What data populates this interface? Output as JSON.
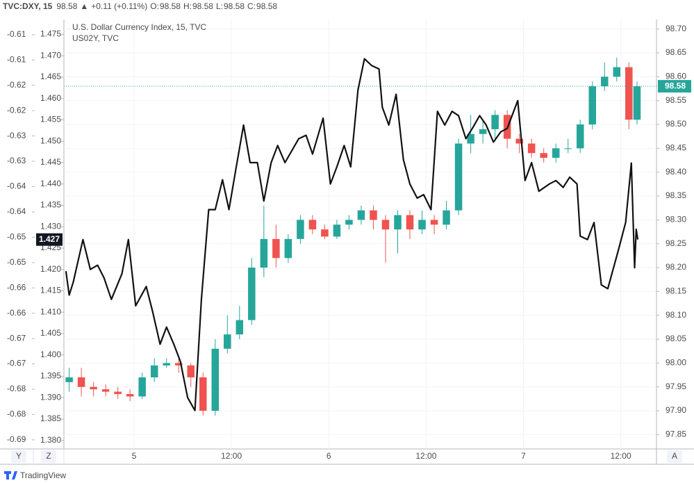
{
  "header": {
    "symbol": "TVC:DXY, 15",
    "last": "98.58",
    "arrow": "▲",
    "change": "+0.11 (+0.11%)",
    "ohlc": [
      {
        "key": "O:",
        "value": "98.58"
      },
      {
        "key": "H:",
        "value": "98.58"
      },
      {
        "key": "L:",
        "value": "98.58"
      },
      {
        "key": "C:",
        "value": "98.58"
      }
    ]
  },
  "ui": {
    "buttons": [
      "Y",
      "Z",
      "A"
    ],
    "brand": "TradingView"
  },
  "chart_data": {
    "type": "candlestick",
    "legend": [
      "U.S. Dollar Currency Index, 15, TVC",
      "US02Y, TVC"
    ],
    "up_color": "#26a69a",
    "down_color": "#ef5350",
    "grid": true,
    "xlim": [
      -8.65,
      64.4
    ],
    "xticks": [
      {
        "value": 0,
        "label": "5"
      },
      {
        "value": 12,
        "label": "12:00"
      },
      {
        "value": 24,
        "label": "6"
      },
      {
        "value": 36,
        "label": "12:00"
      },
      {
        "value": 48,
        "label": "7"
      },
      {
        "value": 60,
        "label": "12:00"
      }
    ],
    "ylim": [
      97.82,
      98.72
    ],
    "yticks": [
      97.85,
      {
        "value": 97.9,
        "label": "97.90"
      },
      97.95,
      {
        "value": 98,
        "label": "98.00"
      },
      98.05,
      {
        "value": 98.1,
        "label": "98.10"
      },
      98.15,
      {
        "value": 98.2,
        "label": "98.20"
      },
      98.25,
      {
        "value": 98.3,
        "label": "98.30"
      },
      98.35,
      {
        "value": 98.4,
        "label": "98.40"
      },
      98.45,
      {
        "value": 98.5,
        "label": "98.50"
      },
      98.55,
      {
        "value": 98.6,
        "label": "98.60"
      },
      98.65,
      {
        "value": 98.7,
        "label": "98.70"
      }
    ],
    "y2lim": [
      1.378,
      1.4785
    ],
    "y2ticks": [
      {
        "value": 1.38,
        "label": "1.380"
      },
      1.385,
      {
        "value": 1.39,
        "label": "1.390"
      },
      1.395,
      {
        "value": 1.4,
        "label": "1.400"
      },
      1.405,
      {
        "value": 1.41,
        "label": "1.410"
      },
      1.415,
      {
        "value": 1.42,
        "label": "1.420"
      },
      1.425,
      {
        "value": 1.43,
        "label": "1.430"
      },
      1.435,
      {
        "value": 1.44,
        "label": "1.440"
      },
      1.445,
      {
        "value": 1.45,
        "label": "1.450"
      },
      1.455,
      {
        "value": 1.46,
        "label": "1.460"
      },
      1.465,
      {
        "value": 1.47,
        "label": "1.470"
      },
      1.475
    ],
    "y3lim": [
      -0.6868,
      -0.602
    ],
    "y3ticks": [
      {
        "value": -0.685,
        "label": "-0.69"
      },
      {
        "value": -0.68,
        "label": "-0.68"
      },
      {
        "value": -0.675,
        "label": "-0.68"
      },
      {
        "value": -0.67,
        "label": "-0.67"
      },
      {
        "value": -0.665,
        "label": "-0.67"
      },
      {
        "value": -0.66,
        "label": "-0.66"
      },
      {
        "value": -0.655,
        "label": "-0.66"
      },
      {
        "value": -0.65,
        "label": "-0.65"
      },
      {
        "value": -0.645,
        "label": "-0.65"
      },
      {
        "value": -0.64,
        "label": "-0.64"
      },
      {
        "value": -0.635,
        "label": "-0.64"
      },
      {
        "value": -0.63,
        "label": "-0.63"
      },
      {
        "value": -0.625,
        "label": "-0.63"
      },
      {
        "value": -0.62,
        "label": "-0.62"
      },
      {
        "value": -0.615,
        "label": "-0.62"
      },
      {
        "value": -0.61,
        "label": "-0.61"
      },
      {
        "value": -0.605,
        "label": "-0.61"
      }
    ],
    "series": [
      {
        "name": "TVC:DXY",
        "type": "candlestick",
        "x": [
          -8,
          -6.5,
          -5,
          -3.5,
          -2,
          -0.5,
          1,
          2.5,
          4,
          5.5,
          7,
          8.5,
          10,
          11.5,
          13,
          14.5,
          16,
          17.5,
          19,
          20.5,
          22,
          23.5,
          25,
          26.5,
          28,
          29.5,
          31,
          32.5,
          34,
          35.5,
          37,
          38.5,
          40,
          41.5,
          43,
          44.5,
          46,
          47.5,
          49,
          50.5,
          52,
          53.5,
          55,
          56.5,
          58,
          59.5,
          61,
          62
        ],
        "open": [
          97.96,
          97.97,
          97.95,
          97.945,
          97.94,
          97.935,
          97.93,
          97.97,
          97.995,
          98.0,
          97.995,
          97.97,
          97.9,
          98.03,
          98.06,
          98.09,
          98.2,
          98.26,
          98.22,
          98.26,
          98.3,
          98.28,
          98.265,
          98.29,
          98.3,
          98.32,
          98.3,
          98.28,
          98.31,
          98.28,
          98.3,
          98.29,
          98.32,
          98.46,
          98.48,
          98.49,
          98.52,
          98.47,
          98.46,
          98.44,
          98.43,
          98.45,
          98.45,
          98.5,
          98.58,
          98.6,
          98.62,
          98.51
        ],
        "high": [
          97.99,
          97.99,
          97.96,
          97.955,
          97.95,
          97.945,
          97.98,
          98.01,
          98.01,
          98.01,
          98.0,
          97.98,
          98.05,
          98.1,
          98.12,
          98.22,
          98.33,
          98.29,
          98.27,
          98.31,
          98.31,
          98.29,
          98.3,
          98.31,
          98.33,
          98.33,
          98.31,
          98.32,
          98.32,
          98.32,
          98.31,
          98.34,
          98.47,
          98.52,
          98.51,
          98.53,
          98.53,
          98.48,
          98.47,
          98.45,
          98.46,
          98.47,
          98.51,
          98.59,
          98.63,
          98.64,
          98.63,
          98.59
        ],
        "low": [
          97.94,
          97.93,
          97.93,
          97.93,
          97.925,
          97.92,
          97.925,
          97.96,
          97.99,
          97.98,
          97.95,
          97.89,
          97.89,
          98.02,
          98.05,
          98.08,
          98.18,
          98.2,
          98.21,
          98.25,
          98.27,
          98.26,
          98.26,
          98.28,
          98.29,
          98.28,
          98.21,
          98.23,
          98.26,
          98.27,
          98.27,
          98.28,
          98.31,
          98.44,
          98.46,
          98.47,
          98.45,
          98.44,
          98.43,
          98.42,
          98.42,
          98.44,
          98.44,
          98.49,
          98.57,
          98.59,
          98.49,
          98.5
        ],
        "close": [
          97.97,
          97.95,
          97.945,
          97.94,
          97.935,
          97.93,
          97.97,
          97.995,
          98.0,
          97.995,
          97.97,
          97.9,
          98.03,
          98.06,
          98.09,
          98.2,
          98.26,
          98.22,
          98.26,
          98.3,
          98.28,
          98.265,
          98.29,
          98.3,
          98.32,
          98.3,
          98.28,
          98.31,
          98.28,
          98.3,
          98.29,
          98.32,
          98.46,
          98.48,
          98.49,
          98.52,
          98.47,
          98.46,
          98.44,
          98.43,
          98.45,
          98.45,
          98.5,
          98.58,
          98.6,
          98.62,
          98.51,
          98.58
        ]
      },
      {
        "name": "US02Y",
        "type": "line",
        "axis": "y2",
        "color": "#111111",
        "x": [
          -8.4,
          -8.0,
          -7.5,
          -6.3,
          -5.4,
          -4.5,
          -3.7,
          -2.8,
          -1.5,
          -0.7,
          0.2,
          1.5,
          2.3,
          3.2,
          4.0,
          4.9,
          5.7,
          6.6,
          7.5,
          8.3,
          9.2,
          10.0,
          10.9,
          11.7,
          12.6,
          13.5,
          14.3,
          15.2,
          16.0,
          16.9,
          17.7,
          18.6,
          20.3,
          21.2,
          22.0,
          23.3,
          24.2,
          25.0,
          25.9,
          26.7,
          27.6,
          28.4,
          29.3,
          30.2,
          30.6,
          31.4,
          32.3,
          33.2,
          34.0,
          34.9,
          35.7,
          36.6,
          37.4,
          38.3,
          39.2,
          40.0,
          40.9,
          41.7,
          42.6,
          43.4,
          44.3,
          45.2,
          46.0,
          47.3,
          48.2,
          49.0,
          49.9,
          51.2,
          52.0,
          52.9,
          53.7,
          54.6,
          55.0,
          55.9,
          56.7,
          57.6,
          58.4,
          59.7,
          60.6,
          61.3,
          61.7,
          61.9,
          62.1
        ],
        "values": [
          1.4196,
          1.414,
          1.417,
          1.427,
          1.42,
          1.421,
          1.418,
          1.413,
          1.419,
          1.427,
          1.4115,
          1.416,
          1.41,
          1.4025,
          1.4065,
          1.4025,
          1.3985,
          1.39,
          1.387,
          1.413,
          1.434,
          1.434,
          1.441,
          1.434,
          1.444,
          1.4538,
          1.445,
          1.445,
          1.436,
          1.445,
          1.449,
          1.445,
          1.4506,
          1.4514,
          1.447,
          1.4554,
          1.44,
          1.444,
          1.449,
          1.444,
          1.462,
          1.4693,
          1.4677,
          1.4669,
          1.458,
          1.4538,
          1.461,
          1.4457,
          1.44,
          1.4367,
          1.4375,
          1.434,
          1.457,
          1.4538,
          1.457,
          1.456,
          1.4506,
          1.453,
          1.456,
          1.4538,
          1.4498,
          1.4522,
          1.453,
          1.4595,
          1.4408,
          1.445,
          1.4383,
          1.44,
          1.4408,
          1.4392,
          1.4416,
          1.44,
          1.4278,
          1.427,
          1.431,
          1.4164,
          1.4155,
          1.4245,
          1.431,
          1.4449,
          1.4204,
          1.4294,
          1.427
        ]
      }
    ]
  }
}
